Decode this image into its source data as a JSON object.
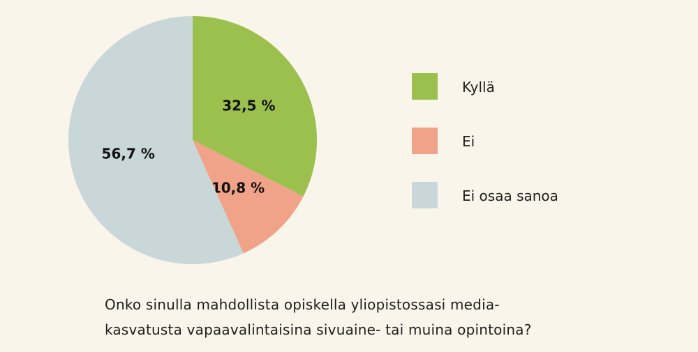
{
  "chart_data": {
    "type": "pie",
    "slices": [
      {
        "label": "Kyllä",
        "value": 32.5,
        "display": "32,5 %",
        "color": "#9cc04e"
      },
      {
        "label": "Ei",
        "value": 10.8,
        "display": "10,8 %",
        "color": "#f0a389"
      },
      {
        "label": "Ei osaa sanoa",
        "value": 56.7,
        "display": "56,7 %",
        "color": "#c9d7d9"
      }
    ],
    "start": "12 o'clock",
    "direction": "clockwise",
    "legend_position": "right"
  },
  "question": {
    "line1": "Onko sinulla mahdollista opiskella yliopistossasi media-",
    "line2": "kasvatusta vapaavalintaisina sivuaine- tai muina opintoina?"
  }
}
